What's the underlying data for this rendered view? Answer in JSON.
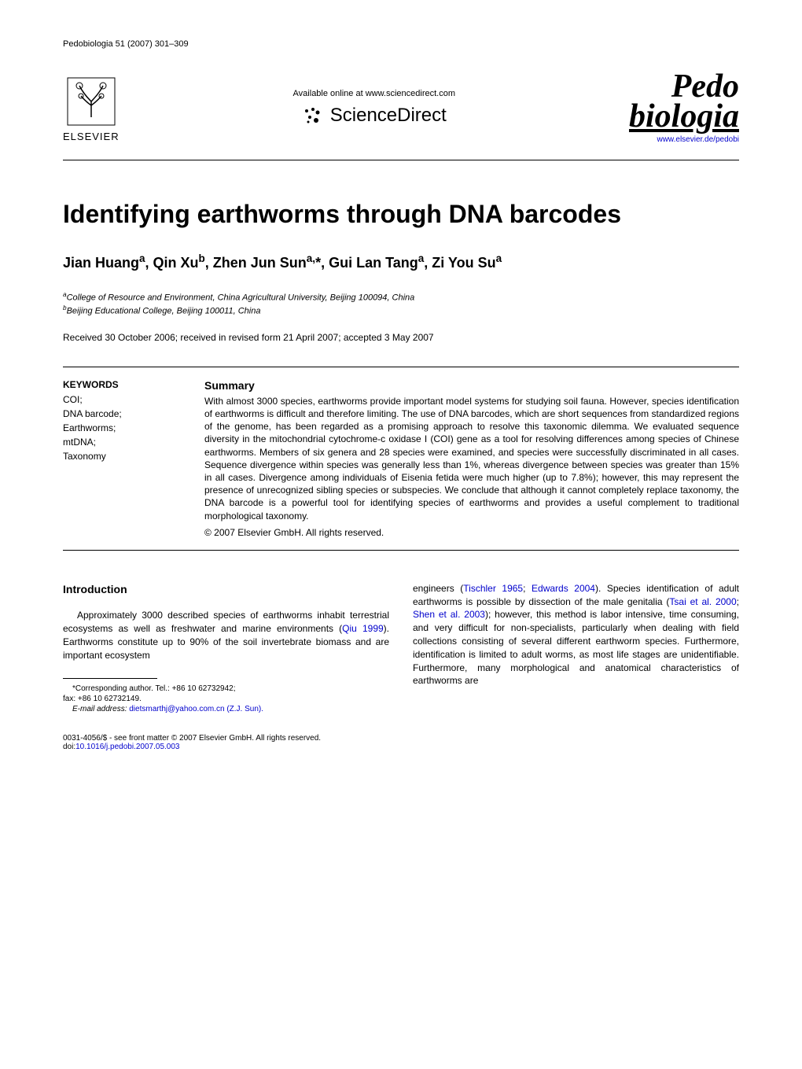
{
  "journal_header": "Pedobiologia 51 (2007) 301–309",
  "masthead": {
    "elsevier_label": "ELSEVIER",
    "available_text": "Available online at www.sciencedirect.com",
    "sd_label": "ScienceDirect",
    "journal_line1": "Pedo",
    "journal_line2": "biologia",
    "journal_url": "www.elsevier.de/pedobi"
  },
  "title": "Identifying earthworms through DNA barcodes",
  "authors_html": "Jian Huang<sup>a</sup>, Qin Xu<sup>b</sup>, Zhen Jun Sun<sup>a,</sup>*, Gui Lan Tang<sup>a</sup>, Zi You Su<sup>a</sup>",
  "affiliations": [
    "<sup>a</sup>College of Resource and Environment, China Agricultural University, Beijing 100094, China",
    "<sup>b</sup>Beijing Educational College, Beijing 100011, China"
  ],
  "dates": "Received 30 October 2006; received in revised form 21 April 2007; accepted 3 May 2007",
  "keywords": {
    "header": "KEYWORDS",
    "items": "COI;\nDNA barcode;\nEarthworms;\nmtDNA;\nTaxonomy"
  },
  "summary": {
    "header": "Summary",
    "body": "With almost 3000 species, earthworms provide important model systems for studying soil fauna. However, species identification of earthworms is difficult and therefore limiting. The use of DNA barcodes, which are short sequences from standardized regions of the genome, has been regarded as a promising approach to resolve this taxonomic dilemma. We evaluated sequence diversity in the mitochondrial cytochrome-c oxidase I (COI) gene as a tool for resolving differences among species of Chinese earthworms. Members of six genera and 28 species were examined, and species were successfully discriminated in all cases. Sequence divergence within species was generally less than 1%, whereas divergence between species was greater than 15% in all cases. Divergence among individuals of Eisenia fetida were much higher (up to 7.8%); however, this may represent the presence of unrecognized sibling species or subspecies. We conclude that although it cannot completely replace taxonomy, the DNA barcode is a powerful tool for identifying species of earthworms and provides a useful complement to traditional morphological taxonomy.",
    "copyright": "© 2007 Elsevier GmbH. All rights reserved."
  },
  "intro": {
    "header": "Introduction",
    "col1_p1_html": "Approximately 3000 described species of earthworms inhabit terrestrial ecosystems as well as freshwater and marine environments (<span class=\"cite-link\">Qiu 1999</span>). Earthworms constitute up to 90% of the soil invertebrate biomass and are important ecosystem",
    "col2_p1_html": "engineers (<span class=\"cite-link\">Tischler 1965</span>; <span class=\"cite-link\">Edwards 2004</span>). Species identification of adult earthworms is possible by dissection of the male genitalia (<span class=\"cite-link\">Tsai et al. 2000</span>; <span class=\"cite-link\">Shen et al. 2003</span>); however, this method is labor intensive, time consuming, and very difficult for non-specialists, particularly when dealing with field collections consisting of several different earthworm species. Furthermore, identification is limited to adult worms, as most life stages are unidentifiable. Furthermore, many morphological and anatomical characteristics of earthworms are"
  },
  "footnotes": {
    "corr": "*Corresponding author. Tel.: +86 10 62732942;",
    "fax": "fax: +86 10 62732149.",
    "email_label": "E-mail address:",
    "email": "dietsmarthj@yahoo.com.cn (Z.J. Sun)."
  },
  "bottom": {
    "line1": "0031-4056/$ - see front matter © 2007 Elsevier GmbH. All rights reserved.",
    "doi_label": "doi:",
    "doi": "10.1016/j.pedobi.2007.05.003"
  }
}
